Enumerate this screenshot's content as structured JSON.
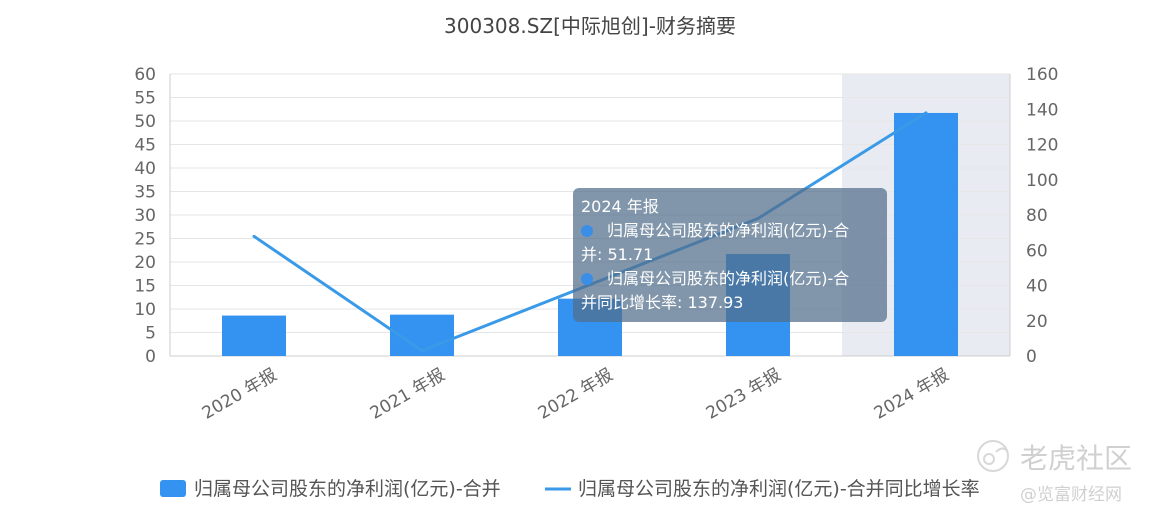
{
  "chart_data": {
    "type": "bar",
    "title": "300308.SZ[中际旭创]-财务摘要",
    "categories": [
      "2020 年报",
      "2021 年报",
      "2022 年报",
      "2023 年报",
      "2024 年报"
    ],
    "series": [
      {
        "name": "归属母公司股东的净利润(亿元)-合并",
        "type": "bar",
        "axis": "left",
        "color": "#3492f0",
        "values": [
          8.6,
          8.8,
          12.2,
          21.7,
          51.71
        ]
      },
      {
        "name": "归属母公司股东的净利润(亿元)-合并同比增长率",
        "type": "line",
        "axis": "right",
        "color": "#3a9ae8",
        "values": [
          67.9,
          3.0,
          40.5,
          78.0,
          137.93
        ]
      }
    ],
    "y_left": {
      "min": 0,
      "max": 60,
      "ticks": [
        "0",
        "5",
        "10",
        "15",
        "20",
        "25",
        "30",
        "35",
        "40",
        "45",
        "50",
        "55",
        "60"
      ]
    },
    "y_right": {
      "min": 0,
      "max": 160,
      "ticks": [
        "0",
        "20",
        "40",
        "60",
        "80",
        "100",
        "120",
        "140",
        "160"
      ]
    },
    "grid": true,
    "highlighted_category": "2024 年报",
    "legend_position": "bottom",
    "tooltip": {
      "title": "2024 年报",
      "item1_line1": "归属母公司股东的净利润(亿元)-合",
      "item1_line2": "并: 51.71",
      "item2_line1": "归属母公司股东的净利润(亿元)-合",
      "item2_line2": "并同比增长率: 137.93"
    }
  },
  "watermark": {
    "text1": "老虎社区",
    "text2": "@览富财经网"
  }
}
